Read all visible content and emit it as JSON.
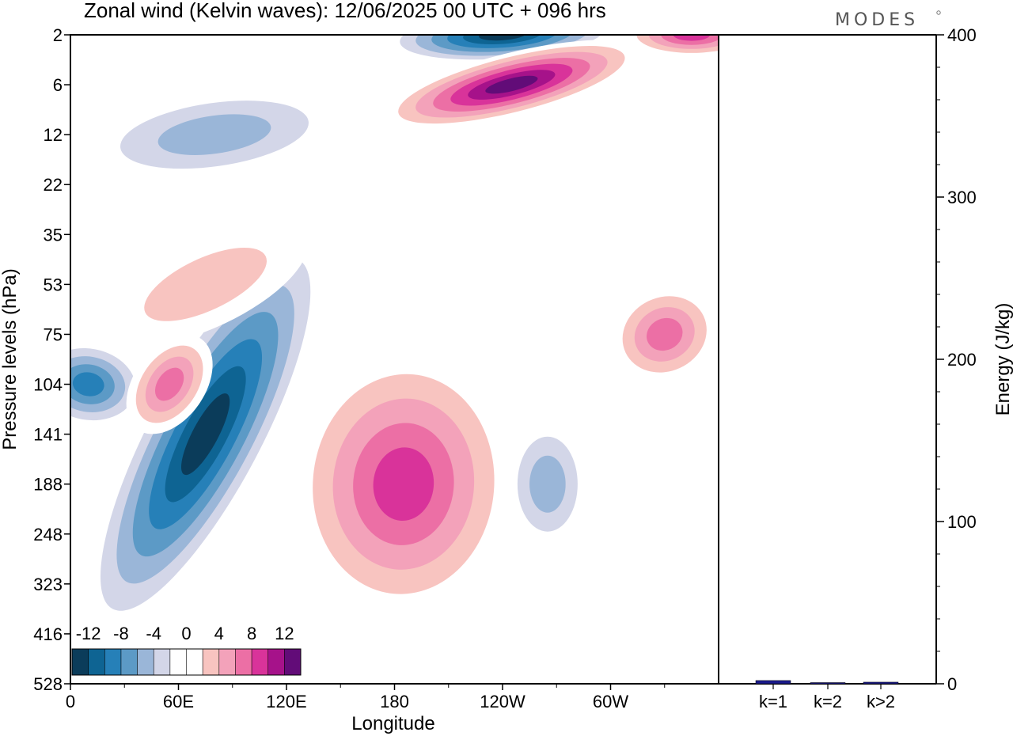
{
  "chart_data": [
    {
      "type": "heatmap",
      "title": "Zonal wind (Kelvin waves):  12/06/2025  00 UTC  + 096 hrs",
      "xlabel": "Longitude",
      "ylabel": "Pressure levels (hPa)",
      "x_ticks": [
        "0",
        "60E",
        "120E",
        "180",
        "120W",
        "60W"
      ],
      "x_range": [
        0,
        360
      ],
      "y_ticks": [
        "2",
        "6",
        "12",
        "22",
        "35",
        "53",
        "75",
        "104",
        "141",
        "188",
        "248",
        "323",
        "416",
        "528"
      ],
      "y_scale": "categorical (pressure levels, top = 2 hPa, bottom = 528 hPa)",
      "colorbar": {
        "labels": [
          "-12",
          "-8",
          "-4",
          "0",
          "4",
          "8",
          "12"
        ],
        "levels": [
          -14,
          -12,
          -10,
          -8,
          -6,
          -4,
          -2,
          2,
          4,
          6,
          8,
          10,
          12,
          14
        ],
        "colors": [
          "#0b3c5a",
          "#0e6493",
          "#2680b8",
          "#5c9ac6",
          "#9ab6d8",
          "#d3d6e8",
          "#ffffff",
          "#ffffff",
          "#f8c4c0",
          "#f3a2ba",
          "#ec6fa5",
          "#d9339a",
          "#a6128a",
          "#620c78"
        ],
        "placement": "bottom-left"
      },
      "features": [
        {
          "sign": "negative",
          "peak_value": -14,
          "lon": 75,
          "level": "141"
        },
        {
          "sign": "negative",
          "peak_value": -10,
          "lon": 10,
          "level": "104"
        },
        {
          "sign": "negative",
          "peak_value": -14,
          "lon": 240,
          "level": "2"
        },
        {
          "sign": "negative",
          "peak_value": -6,
          "lon": 265,
          "level": "188"
        },
        {
          "sign": "negative",
          "peak_value": -6,
          "lon": 80,
          "level": "12"
        },
        {
          "sign": "positive",
          "peak_value": 14,
          "lon": 245,
          "level": "6"
        },
        {
          "sign": "positive",
          "peak_value": 10,
          "lon": 185,
          "level": "188"
        },
        {
          "sign": "positive",
          "peak_value": 8,
          "lon": 55,
          "level": "104"
        },
        {
          "sign": "positive",
          "peak_value": 8,
          "lon": 330,
          "level": "75"
        },
        {
          "sign": "positive",
          "peak_value": 10,
          "lon": 345,
          "level": "2"
        },
        {
          "sign": "positive",
          "peak_value": 4,
          "lon": 75,
          "level": "53"
        }
      ]
    },
    {
      "type": "bar",
      "ylabel": "Energy (J/kg)",
      "categories": [
        "k=1",
        "k=2",
        "k>2"
      ],
      "values": [
        2,
        0.5,
        1
      ],
      "ylim": [
        0,
        400
      ],
      "y_ticks": [
        "0",
        "100",
        "200",
        "300",
        "400"
      ],
      "bar_color": "#1a1a8c"
    }
  ],
  "logo": "MODES"
}
